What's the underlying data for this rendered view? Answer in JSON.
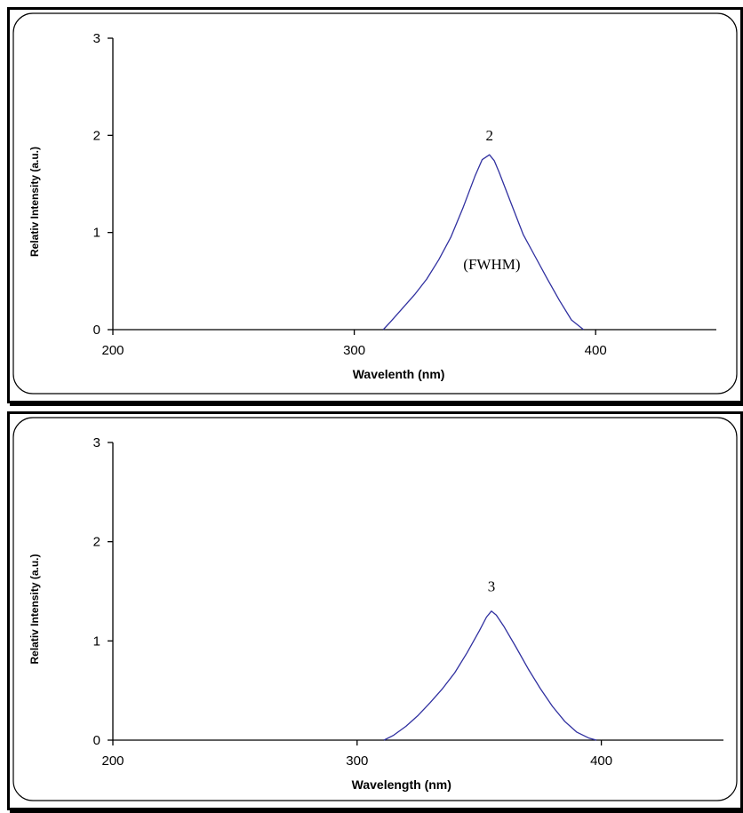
{
  "chart_data": [
    {
      "type": "line",
      "xlabel": "Wavelenth (nm)",
      "ylabel": "Relativ Intensity (a.u.)",
      "xlim": [
        200,
        450
      ],
      "ylim": [
        0,
        3
      ],
      "x_ticks": [
        200,
        300,
        400
      ],
      "y_ticks": [
        0,
        1,
        2,
        3
      ],
      "grid": false,
      "line_color": "#3030a0",
      "series": [
        {
          "x": [
            312,
            315,
            320,
            325,
            330,
            335,
            340,
            345,
            350,
            353,
            356,
            358,
            360,
            365,
            370,
            375,
            380,
            385,
            390,
            395
          ],
          "y": [
            0.0,
            0.08,
            0.22,
            0.36,
            0.52,
            0.72,
            0.95,
            1.25,
            1.58,
            1.75,
            1.8,
            1.74,
            1.62,
            1.3,
            0.98,
            0.75,
            0.52,
            0.3,
            0.1,
            0.0
          ]
        }
      ],
      "annotations": [
        {
          "text": "2",
          "x": 356,
          "y": 1.95
        },
        {
          "text": "(FWHM)",
          "x": 357,
          "y": 0.62
        }
      ]
    },
    {
      "type": "line",
      "xlabel": "Wavelength (nm)",
      "ylabel": "Relativ Intensity (a.u.)",
      "xlim": [
        200,
        450
      ],
      "ylim": [
        0,
        3
      ],
      "x_ticks": [
        200,
        300,
        400
      ],
      "y_ticks": [
        0,
        1,
        2,
        3
      ],
      "grid": false,
      "line_color": "#3030a0",
      "series": [
        {
          "x": [
            311,
            315,
            320,
            325,
            330,
            335,
            340,
            345,
            350,
            353,
            355,
            357,
            360,
            365,
            370,
            375,
            380,
            385,
            390,
            395,
            398
          ],
          "y": [
            0.0,
            0.05,
            0.14,
            0.25,
            0.38,
            0.52,
            0.68,
            0.88,
            1.1,
            1.24,
            1.3,
            1.26,
            1.15,
            0.94,
            0.72,
            0.52,
            0.34,
            0.19,
            0.08,
            0.02,
            0.0
          ]
        }
      ],
      "annotations": [
        {
          "text": "3",
          "x": 355,
          "y": 1.5
        }
      ]
    }
  ]
}
